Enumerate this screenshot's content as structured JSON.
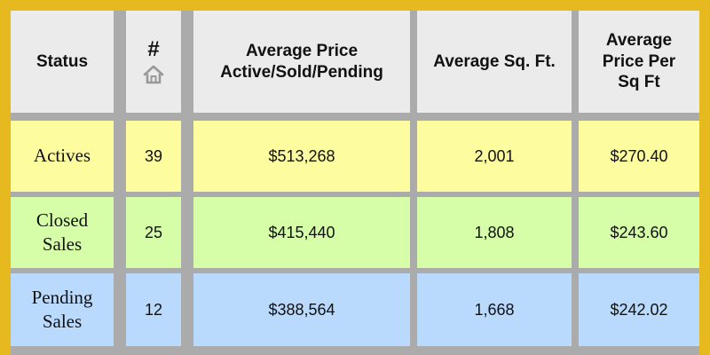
{
  "header": {
    "status": "Status",
    "count_symbol": "#",
    "count_icon": "home-icon",
    "avg_price": [
      "Average Price",
      "Active/Sold/Pending"
    ],
    "avg_sqft": "Average Sq. Ft.",
    "avg_price_per_sqft": [
      "Average",
      "Price Per",
      "Sq Ft"
    ]
  },
  "rows": [
    {
      "status": [
        "Actives"
      ],
      "count": "39",
      "avg_price": "$513,268",
      "avg_sqft": "2,001",
      "price_per_sqft": "$270.40",
      "color": "#fdfda0"
    },
    {
      "status": [
        "Closed",
        "Sales"
      ],
      "count": "25",
      "avg_price": "$415,440",
      "avg_sqft": "1,808",
      "price_per_sqft": "$243.60",
      "color": "#d6fda8"
    },
    {
      "status": [
        "Pending",
        "Sales"
      ],
      "count": "12",
      "avg_price": "$388,564",
      "avg_sqft": "1,668",
      "price_per_sqft": "$242.02",
      "color": "#b9d9fd"
    }
  ],
  "colors": {
    "frame": "#e6b91e",
    "grid": "#ababab",
    "header": "#ebebeb"
  }
}
